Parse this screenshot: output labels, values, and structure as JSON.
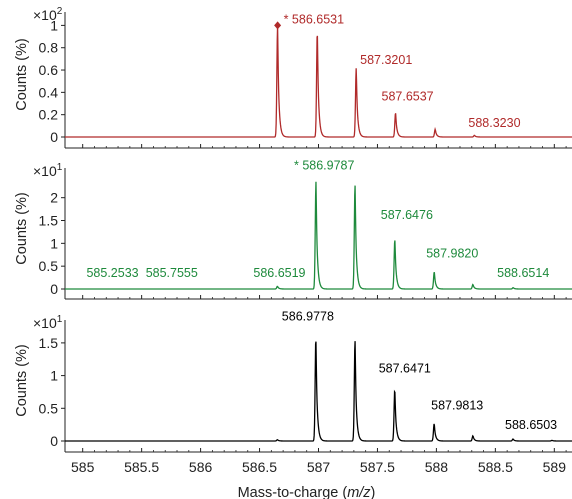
{
  "chart_data": {
    "type": "line",
    "xlabel_parts": [
      "Mass-to-charge (",
      "m/z",
      ")"
    ],
    "ylabel": "Counts (%)",
    "xlim": [
      584.85,
      589.15
    ],
    "x_ticks": [
      "585",
      "585.5",
      "586",
      "586.5",
      "587",
      "587.5",
      "588",
      "588.5",
      "589"
    ],
    "x_tick_values": [
      585,
      585.5,
      586,
      586.5,
      587,
      587.5,
      588,
      588.5,
      589
    ],
    "panels": [
      {
        "color": "#b02a2a",
        "scale_base": "×10",
        "scale_exp": "2",
        "ylim": [
          0,
          1.12
        ],
        "y_ticks": [
          "0",
          "0.2",
          "0.4",
          "0.6",
          "0.8",
          "1"
        ],
        "y_tick_values": [
          0,
          0.2,
          0.4,
          0.6,
          0.8,
          1
        ],
        "peaks": [
          {
            "x": 586.6531,
            "y": 1.0
          },
          {
            "x": 586.99,
            "y": 0.96
          },
          {
            "x": 587.3201,
            "y": 0.62
          },
          {
            "x": 587.6537,
            "y": 0.22
          },
          {
            "x": 587.99,
            "y": 0.07
          },
          {
            "x": 588.323,
            "y": 0.015
          }
        ],
        "annotations": [
          {
            "label": "* 586.6531",
            "x": 586.6531,
            "y": 1.0
          },
          {
            "label": "587.3201",
            "x": 587.3201,
            "y": 0.62
          },
          {
            "label": "587.6537",
            "x": 587.6537,
            "y": 0.22
          },
          {
            "label": "588.3230",
            "x": 588.323,
            "y": 0.015
          }
        ],
        "marker": {
          "x": 586.6531,
          "y": 1.0,
          "shape": "diamond"
        }
      },
      {
        "color": "#1e8a3c",
        "scale_base": "×10",
        "scale_exp": "1",
        "ylim": [
          0,
          2.65
        ],
        "y_ticks": [
          "0",
          "0.5",
          "1",
          "1.5",
          "2"
        ],
        "y_tick_values": [
          0,
          0.5,
          1,
          1.5,
          2
        ],
        "peaks": [
          {
            "x": 586.6519,
            "y": 0.06
          },
          {
            "x": 586.9787,
            "y": 2.35
          },
          {
            "x": 587.31,
            "y": 2.3
          },
          {
            "x": 587.6476,
            "y": 1.1
          },
          {
            "x": 587.982,
            "y": 0.38
          },
          {
            "x": 588.31,
            "y": 0.1
          },
          {
            "x": 588.6514,
            "y": 0.03
          }
        ],
        "annotations": [
          {
            "label": "* 586.9787",
            "x": 586.9787,
            "y": 2.35
          },
          {
            "label": "587.6476",
            "x": 587.6476,
            "y": 1.1
          },
          {
            "label": "587.9820",
            "x": 587.982,
            "y": 0.38
          },
          {
            "label": "588.6514",
            "x": 588.6514,
            "y": 0.03
          },
          {
            "label": "586.6519",
            "x": 586.6519,
            "y": 0.06
          },
          {
            "label": "585.2533",
            "x": 585.2533,
            "y": 0
          },
          {
            "label": "585.7555",
            "x": 585.7555,
            "y": 0
          }
        ]
      },
      {
        "color": "#000000",
        "scale_base": "×10",
        "scale_exp": "1",
        "ylim": [
          0,
          1.85
        ],
        "y_ticks": [
          "0",
          "0.5",
          "1",
          "1.5"
        ],
        "y_tick_values": [
          0,
          0.5,
          1,
          1.5
        ],
        "peaks": [
          {
            "x": 586.6519,
            "y": 0.02
          },
          {
            "x": 586.9778,
            "y": 1.6
          },
          {
            "x": 587.31,
            "y": 1.55
          },
          {
            "x": 587.6471,
            "y": 0.8
          },
          {
            "x": 587.9813,
            "y": 0.27
          },
          {
            "x": 588.31,
            "y": 0.08
          },
          {
            "x": 588.6503,
            "y": 0.03
          },
          {
            "x": 588.98,
            "y": 0.01
          }
        ],
        "annotations": [
          {
            "label": "586.9778",
            "x": 586.9778,
            "y": 1.6
          },
          {
            "label": "587.6471",
            "x": 587.6471,
            "y": 0.8
          },
          {
            "label": "587.9813",
            "x": 587.9813,
            "y": 0.27
          },
          {
            "label": "588.6503",
            "x": 588.6503,
            "y": 0.03
          }
        ]
      }
    ]
  }
}
